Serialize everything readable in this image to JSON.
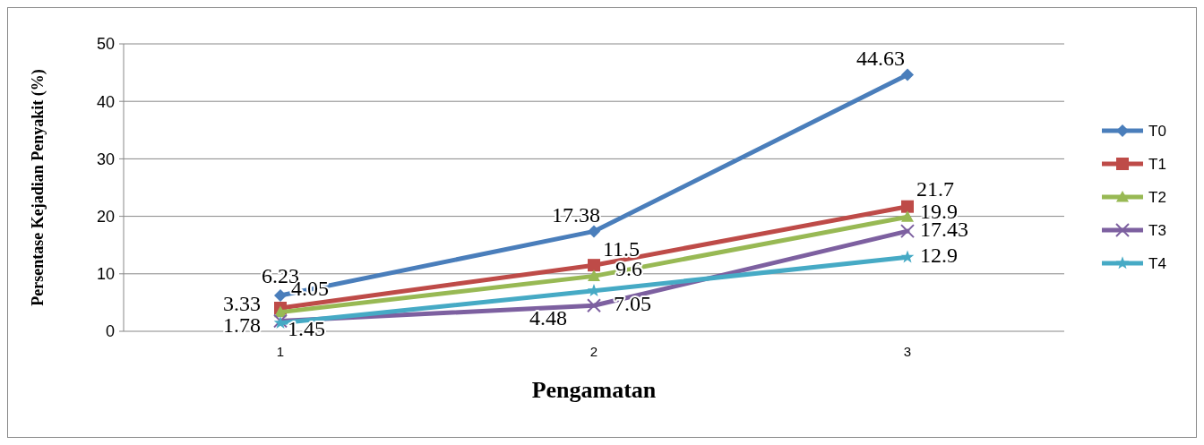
{
  "chart_data": {
    "type": "line",
    "xlabel": "Pengamatan",
    "ylabel": "Persentase Kejadian Penyakit (%)",
    "categories": [
      "1",
      "2",
      "3"
    ],
    "ylim": [
      0,
      50
    ],
    "yticks": [
      0,
      10,
      20,
      30,
      40,
      50
    ],
    "grid": "y",
    "legend": "right",
    "data_labels": true,
    "line_style": "solid",
    "series": [
      {
        "name": "T0",
        "color": "#4a7ebb",
        "marker": "diamond",
        "values": [
          6.23,
          17.38,
          44.63
        ]
      },
      {
        "name": "T1",
        "color": "#be4b48",
        "marker": "square",
        "values": [
          4.05,
          11.5,
          21.7
        ]
      },
      {
        "name": "T2",
        "color": "#98b954",
        "marker": "triangle",
        "values": [
          3.33,
          9.6,
          19.9
        ]
      },
      {
        "name": "T3",
        "color": "#7d60a0",
        "marker": "cross",
        "values": [
          1.78,
          4.48,
          17.43
        ]
      },
      {
        "name": "T4",
        "color": "#46aac5",
        "marker": "star",
        "values": [
          1.45,
          7.05,
          12.9
        ]
      }
    ]
  }
}
